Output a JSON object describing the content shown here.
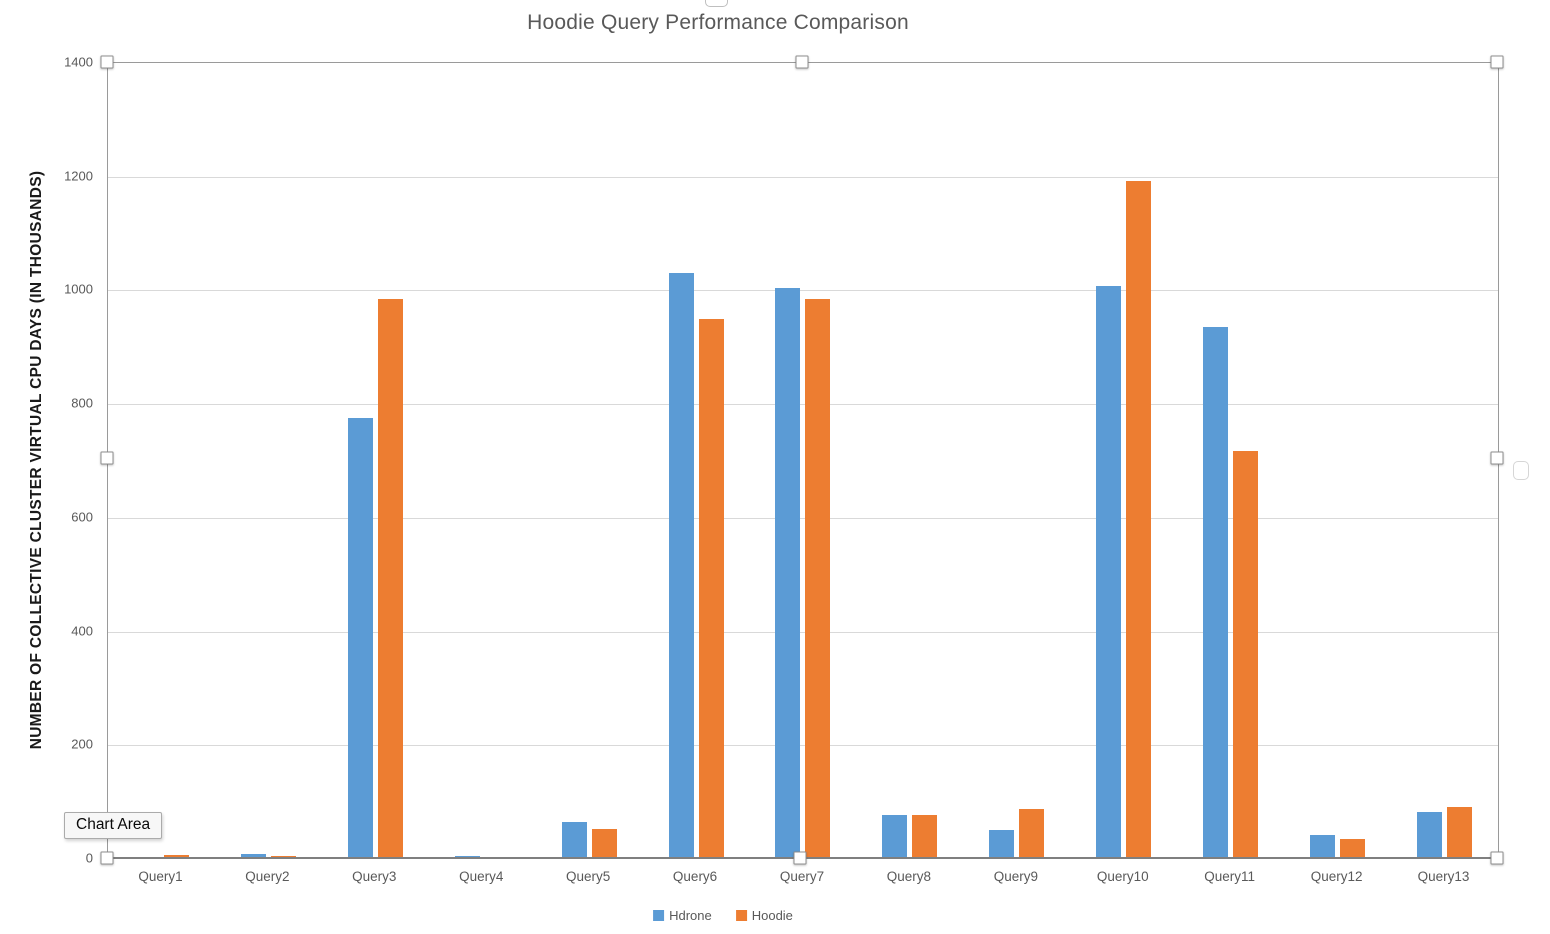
{
  "chart_data": {
    "type": "bar",
    "title": "Hoodie Query Performance Comparison",
    "ylabel": "NUMBER OF COLLECTIVE CLUSTER VIRTUAL CPU DAYS (IN THOUSANDS)",
    "xlabel": "",
    "categories": [
      "Query1",
      "Query2",
      "Query3",
      "Query4",
      "Query5",
      "Query6",
      "Query7",
      "Query8",
      "Query9",
      "Query10",
      "Query11",
      "Query12",
      "Query13"
    ],
    "series": [
      {
        "name": "Hdrone",
        "color": "#5B9BD5",
        "values": [
          4,
          8,
          775,
          5,
          65,
          1030,
          1005,
          78,
          51,
          1008,
          935,
          43,
          82
        ]
      },
      {
        "name": "Hoodie",
        "color": "#ED7D31",
        "values": [
          7,
          6,
          985,
          4,
          53,
          950,
          985,
          77,
          88,
          1193,
          718,
          35,
          91
        ]
      }
    ],
    "ylim": [
      0,
      1400
    ],
    "yticks": [
      0,
      200,
      400,
      600,
      800,
      1000,
      1200,
      1400
    ],
    "grid": "horizontal",
    "legend_position": "bottom"
  },
  "tooltip": {
    "label": "Chart Area"
  },
  "colors": {
    "grid": "#d9d9d9",
    "axis_line": "#7f7f7f",
    "text": "#595959",
    "selection_border": "#9a9a9a"
  }
}
